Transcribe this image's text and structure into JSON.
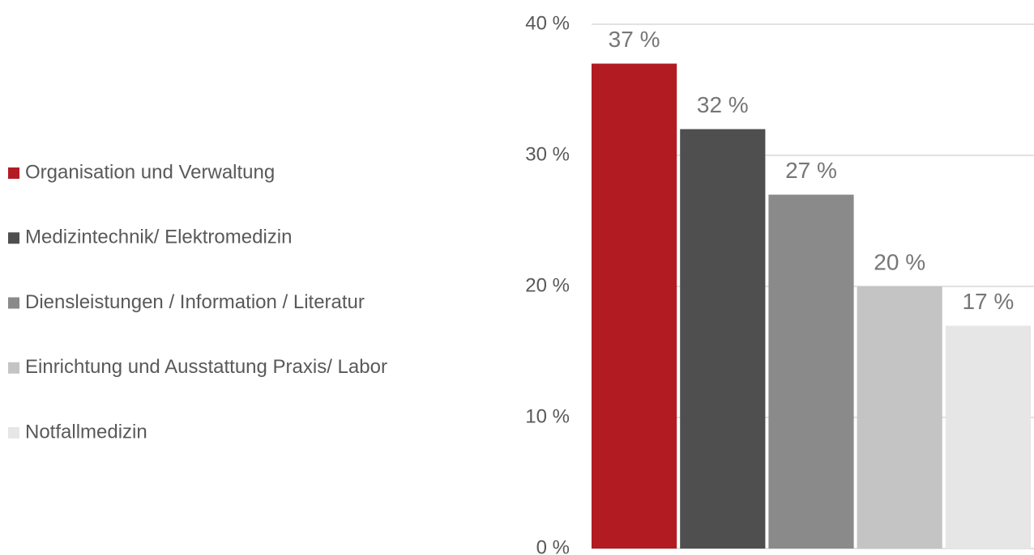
{
  "chart_data": {
    "type": "bar",
    "categories": [
      null
    ],
    "series": [
      {
        "name": "Organisation und Verwaltung",
        "color": "#b31b23",
        "values": [
          37
        ],
        "value_labels": [
          "37 %"
        ]
      },
      {
        "name": "Medizintechnik/ Elektromedizin",
        "color": "#4f4f4f",
        "values": [
          32
        ],
        "value_labels": [
          "32 %"
        ]
      },
      {
        "name": "Diensleistungen / Information / Literatur",
        "color": "#8a8a8a",
        "values": [
          27
        ],
        "value_labels": [
          "27 %"
        ]
      },
      {
        "name": "Einrichtung und Ausstattung Praxis/ Labor",
        "color": "#c4c4c4",
        "values": [
          20
        ],
        "value_labels": [
          "20 %"
        ]
      },
      {
        "name": "Notfallmedizin",
        "color": "#e6e6e6",
        "values": [
          17
        ],
        "value_labels": [
          "17 %"
        ]
      }
    ],
    "ylim": [
      0,
      40
    ],
    "yticks": [
      {
        "value": 0,
        "label": "0 %"
      },
      {
        "value": 10,
        "label": "10 %"
      },
      {
        "value": 20,
        "label": "20 %"
      },
      {
        "value": 30,
        "label": "30 %"
      },
      {
        "value": 40,
        "label": "40 %"
      }
    ],
    "grid": true,
    "legend": "left"
  }
}
